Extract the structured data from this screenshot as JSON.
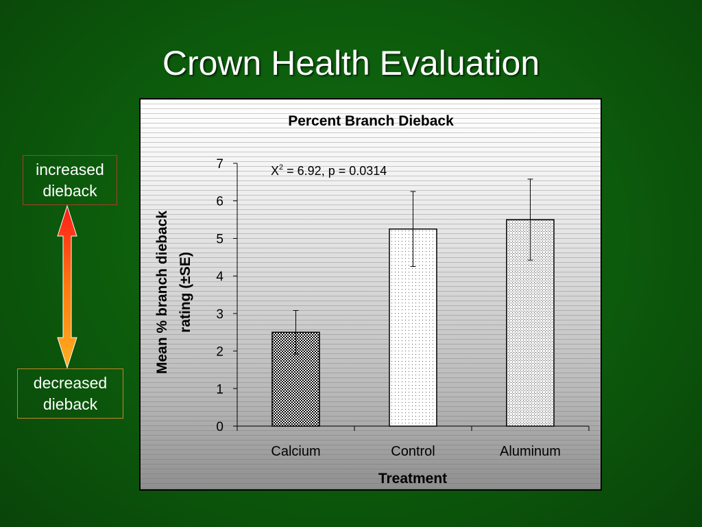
{
  "slide": {
    "title": "Crown Health Evaluation",
    "increased_label": "increased dieback",
    "decreased_label": "decreased dieback"
  },
  "chart_data": {
    "type": "bar",
    "title": "Percent Branch Dieback",
    "xlabel": "Treatment",
    "ylabel_line1": "Mean % branch dieback",
    "ylabel_line2": "rating (±SE)",
    "categories": [
      "Calcium",
      "Control",
      "Aluminum"
    ],
    "values": [
      2.5,
      5.25,
      5.5
    ],
    "error": [
      0.58,
      1.0,
      1.08
    ],
    "ylim": [
      0,
      7
    ],
    "yticks": [
      0,
      1,
      2,
      3,
      4,
      5,
      6,
      7
    ],
    "annotation_main": "X",
    "annotation_sup": "2",
    "annotation_rest": " = 6.92, p = 0.0314",
    "colors": {
      "axis": "#000000",
      "bar_fill": "#ffffff",
      "bar_edge": "#000000",
      "increased_border": "#b23a2a",
      "decreased_border": "#c8862a"
    }
  }
}
